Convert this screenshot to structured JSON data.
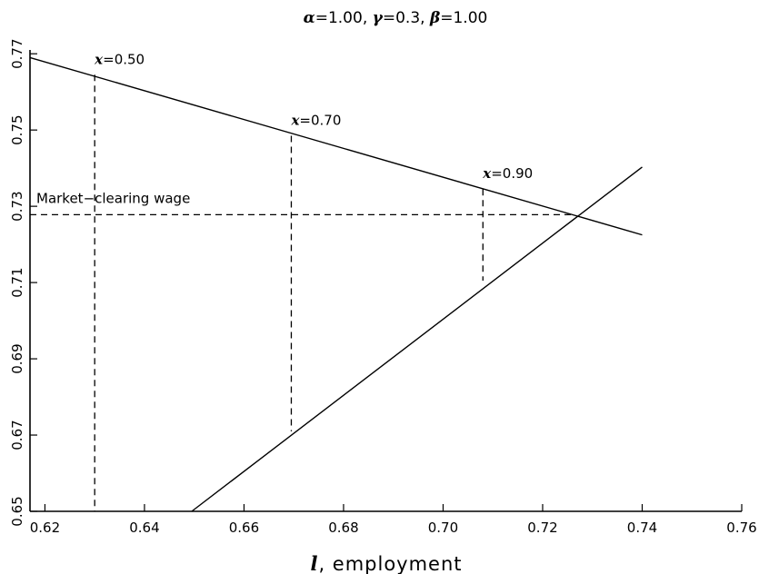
{
  "chart_data": {
    "type": "line",
    "title_parts": [
      {
        "sym": "α",
        "val": "=1.00, "
      },
      {
        "sym": "γ",
        "val": "=0.3, "
      },
      {
        "sym": "β",
        "val": "=1.00"
      }
    ],
    "xlabel_var": "l",
    "xlabel_rest": ", employment",
    "ylabel": "",
    "xlim": [
      0.617,
      0.76
    ],
    "ylim": [
      0.65,
      0.771
    ],
    "x_ticks": [
      "0.62",
      "0.64",
      "0.66",
      "0.68",
      "0.70",
      "0.72",
      "0.74",
      "0.76"
    ],
    "y_ticks": [
      "0.65",
      "0.67",
      "0.69",
      "0.71",
      "0.73",
      "0.75",
      "0.77"
    ],
    "series": [
      {
        "points": [
          [
            0.617,
            0.769
          ],
          [
            0.74,
            0.7225
          ]
        ]
      },
      {
        "points": [
          [
            0.6495,
            0.65
          ],
          [
            0.74,
            0.7403
          ]
        ]
      }
    ],
    "market_clearing": {
      "label": "Market−clearing wage",
      "y": 0.7278,
      "x_end": 0.7265
    },
    "markers": [
      {
        "sym": "x",
        "label": "=0.50",
        "x": 0.63,
        "y_top": 0.7645,
        "y_bottom": 0.65
      },
      {
        "sym": "x",
        "label": "=0.70",
        "x": 0.6695,
        "y_top": 0.7485,
        "y_bottom": 0.671
      },
      {
        "sym": "x",
        "label": "=0.90",
        "x": 0.708,
        "y_top": 0.7345,
        "y_bottom": 0.7105
      }
    ]
  }
}
